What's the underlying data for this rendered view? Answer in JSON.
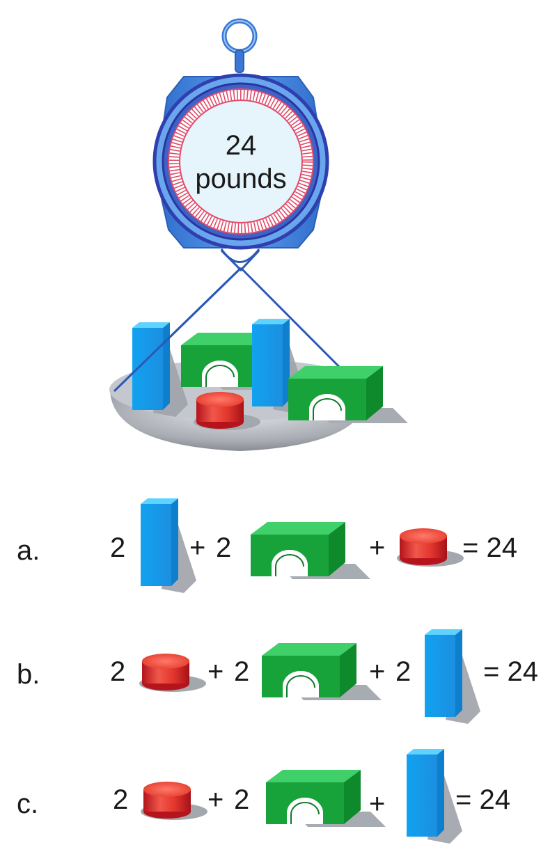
{
  "scale": {
    "reading_value": "24",
    "reading_unit": "pounds"
  },
  "options": [
    {
      "letter": "a.",
      "terms": [
        {
          "coef": "2",
          "op": "",
          "block": "blue-prism"
        },
        {
          "coef": "2",
          "op": "+",
          "block": "green-arch"
        },
        {
          "coef": "",
          "op": "+",
          "block": "red-cylinder"
        }
      ],
      "equals": "= 24"
    },
    {
      "letter": "b.",
      "terms": [
        {
          "coef": "2",
          "op": "",
          "block": "red-cylinder"
        },
        {
          "coef": "2",
          "op": "+",
          "block": "green-arch"
        },
        {
          "coef": "2",
          "op": "+",
          "block": "blue-prism"
        }
      ],
      "equals": "= 24"
    },
    {
      "letter": "c.",
      "terms": [
        {
          "coef": "2",
          "op": "",
          "block": "red-cylinder"
        },
        {
          "coef": "2",
          "op": "+",
          "block": "green-arch"
        },
        {
          "coef": "",
          "op": "+",
          "block": "blue-prism"
        }
      ],
      "equals": "= 24"
    }
  ],
  "colors": {
    "scale_body": "#3f7fd6",
    "dial_ring": "#2f3fae",
    "dial_face": "#e6f4fb",
    "tick_marks": "#e04a6a",
    "blue_block": "#1ea8f0",
    "green_block": "#1aa83c",
    "red_block": "#e0302a",
    "pan": "#b8bcc2"
  }
}
